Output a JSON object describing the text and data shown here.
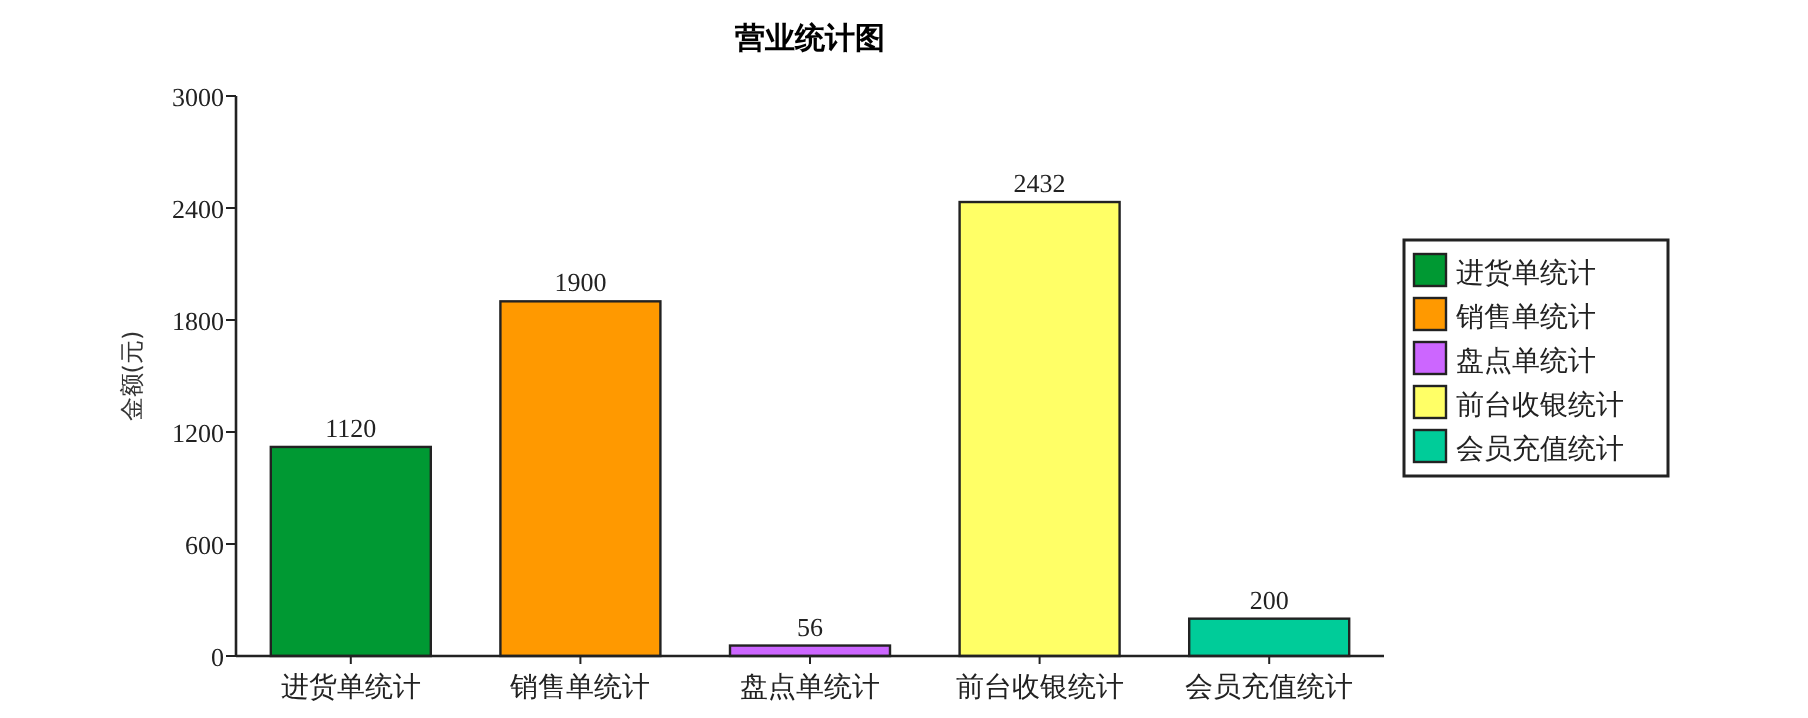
{
  "chart_data": {
    "type": "bar",
    "title": "营业统计图",
    "ylabel": "金额(元)",
    "categories": [
      "进货单统计",
      "销售单统计",
      "盘点单统计",
      "前台收银统计",
      "会员充值统计"
    ],
    "series": [
      {
        "name": "进货单统计",
        "color": "#009933",
        "values": [
          1120,
          null,
          null,
          null,
          null
        ]
      },
      {
        "name": "销售单统计",
        "color": "#ff9900",
        "values": [
          null,
          1900,
          null,
          null,
          null
        ]
      },
      {
        "name": "盘点单统计",
        "color": "#cc66ff",
        "values": [
          null,
          null,
          56,
          null,
          null
        ]
      },
      {
        "name": "前台收银统计",
        "color": "#ffff66",
        "values": [
          null,
          null,
          null,
          2432,
          null
        ]
      },
      {
        "name": "会员充值统计",
        "color": "#00cc99",
        "values": [
          null,
          null,
          null,
          null,
          200
        ]
      }
    ],
    "ylim": [
      0,
      3000
    ],
    "yticks": [
      0,
      600,
      1200,
      1800,
      2400,
      3000
    ],
    "data_labels": true,
    "legend": "right"
  }
}
